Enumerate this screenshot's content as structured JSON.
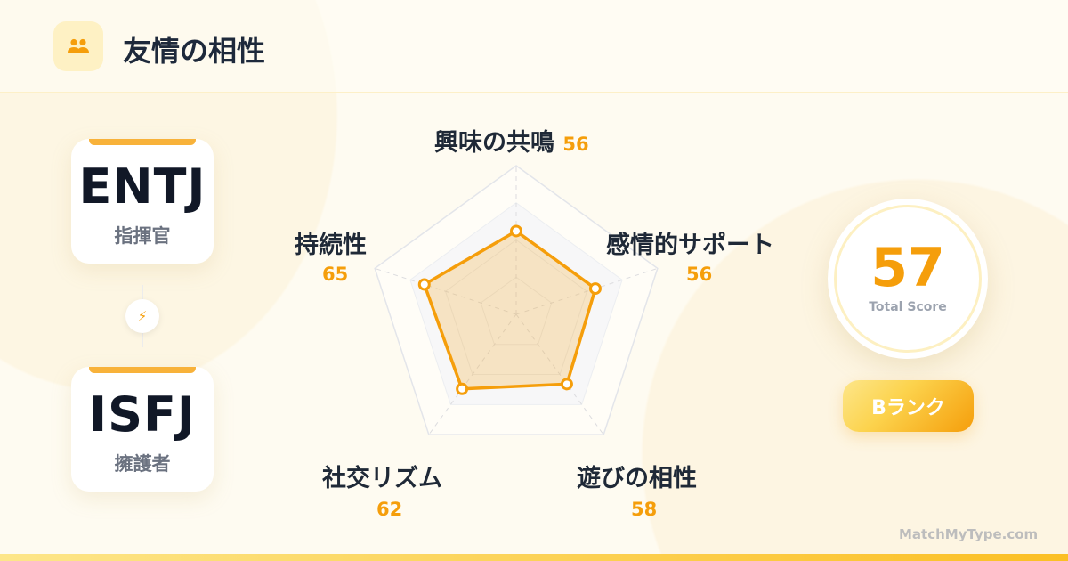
{
  "header": {
    "title": "友情の相性",
    "icon": "users-icon"
  },
  "types": [
    {
      "code": "ENTJ",
      "name": "指揮官"
    },
    {
      "code": "ISFJ",
      "name": "擁護者"
    }
  ],
  "connector_icon": "bolt-icon",
  "chart_data": {
    "type": "radar",
    "range": [
      0,
      100
    ],
    "rings": 4,
    "axes": [
      {
        "label": "興味の共鳴",
        "value": 56
      },
      {
        "label": "感情的サポート",
        "value": 56
      },
      {
        "label": "遊びの相性",
        "value": 58
      },
      {
        "label": "社交リズム",
        "value": 62
      },
      {
        "label": "持続性",
        "value": 65
      }
    ]
  },
  "labels": {
    "v0": "56",
    "v1": "56",
    "v2": "58",
    "v3": "62",
    "v4": "65"
  },
  "score": {
    "value": "57",
    "caption": "Total Score"
  },
  "rank": "Bランク",
  "brand": "MatchMyType.com",
  "colors": {
    "accent": "#f59e0b",
    "fill": "#f5d9a0"
  }
}
